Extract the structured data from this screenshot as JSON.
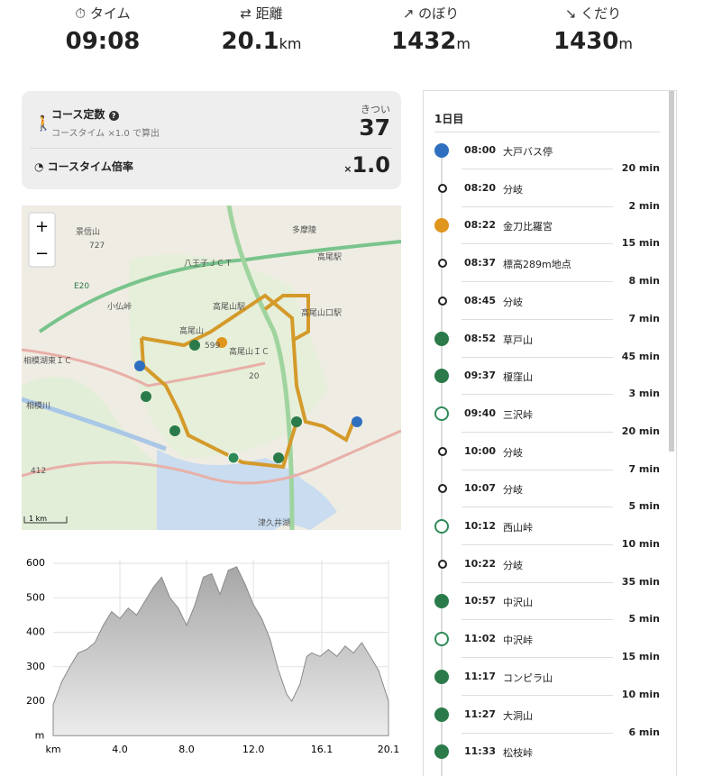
{
  "stats": [
    {
      "label": "タイム",
      "value": "09:08"
    },
    {
      "label": "距離",
      "value": "20.1",
      "unit": "km"
    },
    {
      "label": "のぼり",
      "value": "1432",
      "unit": "m"
    },
    {
      "label": "くだり",
      "value": "1430",
      "unit": "m"
    }
  ],
  "course": {
    "title": "コース定数",
    "help": "?",
    "note": "コースタイム ×1.0 で算出",
    "level": "きつい",
    "constant": "37",
    "ratio_label": "コースタイム倍率",
    "ratio_prefix": "×",
    "ratio": "1.0"
  },
  "map": {
    "zoom_in": "+",
    "zoom_out": "−",
    "scale": "1 km",
    "labels": [
      "多摩陵",
      "高尾駅",
      "八王子ＪＣＴ",
      "高尾山口駅",
      "高尾山駅",
      "高尾山",
      "高尾山ＩＣ",
      "小仏峠",
      "相模湖東ＩＣ",
      "相模川",
      "津久井湖",
      "E20",
      "20",
      "412",
      "599",
      "727",
      "景信山"
    ]
  },
  "chart_data": {
    "type": "area",
    "xlabel": "km",
    "ylabel": "m",
    "color": "#a6a6a6",
    "grid": true,
    "x": [
      0,
      0.5,
      1,
      1.5,
      2,
      2.5,
      3,
      3.5,
      4,
      4.5,
      5,
      5.5,
      6,
      6.5,
      7,
      7.5,
      8,
      8.5,
      9,
      9.5,
      10,
      10.5,
      11,
      11.5,
      12,
      12.5,
      13,
      13.5,
      14,
      14.3,
      14.8,
      15.2,
      15.5,
      16,
      16.5,
      17,
      17.5,
      18,
      18.5,
      19,
      19.5,
      20.1
    ],
    "values": [
      190,
      255,
      300,
      340,
      350,
      370,
      420,
      460,
      440,
      470,
      450,
      490,
      530,
      560,
      500,
      470,
      420,
      480,
      560,
      570,
      510,
      580,
      590,
      540,
      480,
      440,
      380,
      290,
      220,
      200,
      250,
      330,
      340,
      330,
      350,
      330,
      360,
      340,
      370,
      330,
      290,
      200
    ],
    "xlim": [
      0,
      20.1
    ],
    "ylim": [
      100,
      610
    ],
    "xticks": [
      {
        "value": 4,
        "label": "4.0"
      },
      {
        "value": 8,
        "label": "8.0"
      },
      {
        "value": 12,
        "label": "12.0"
      },
      16.1,
      20.1
    ],
    "yticks": [
      200,
      300,
      400,
      500,
      600
    ]
  },
  "timeline": {
    "day": "1日目",
    "items": [
      {
        "time": "08:00",
        "name": "大戸バス停",
        "icon": "bus",
        "next": "20 min"
      },
      {
        "time": "08:20",
        "name": "分岐",
        "icon": "point",
        "next": "2 min"
      },
      {
        "time": "08:22",
        "name": "金刀比羅宮",
        "icon": "shrine",
        "next": "15 min"
      },
      {
        "time": "08:37",
        "name": "標高289m地点",
        "icon": "point",
        "next": "8 min"
      },
      {
        "time": "08:45",
        "name": "分岐",
        "icon": "point",
        "next": "7 min"
      },
      {
        "time": "08:52",
        "name": "草戸山",
        "icon": "summit",
        "next": "45 min"
      },
      {
        "time": "09:37",
        "name": "榎窪山",
        "icon": "summit",
        "next": "3 min"
      },
      {
        "time": "09:40",
        "name": "三沢峠",
        "icon": "pass",
        "next": "20 min"
      },
      {
        "time": "10:00",
        "name": "分岐",
        "icon": "point",
        "next": "7 min"
      },
      {
        "time": "10:07",
        "name": "分岐",
        "icon": "point",
        "next": "5 min"
      },
      {
        "time": "10:12",
        "name": "西山峠",
        "icon": "pass",
        "next": "10 min"
      },
      {
        "time": "10:22",
        "name": "分岐",
        "icon": "point",
        "next": "35 min"
      },
      {
        "time": "10:57",
        "name": "中沢山",
        "icon": "summit",
        "next": "5 min"
      },
      {
        "time": "11:02",
        "name": "中沢峠",
        "icon": "pass",
        "next": "15 min"
      },
      {
        "time": "11:17",
        "name": "コンピラ山",
        "icon": "summit",
        "next": "10 min"
      },
      {
        "time": "11:27",
        "name": "大洞山",
        "icon": "summit",
        "next": "6 min"
      },
      {
        "time": "11:33",
        "name": "松枝峠",
        "icon": "summit"
      }
    ]
  }
}
